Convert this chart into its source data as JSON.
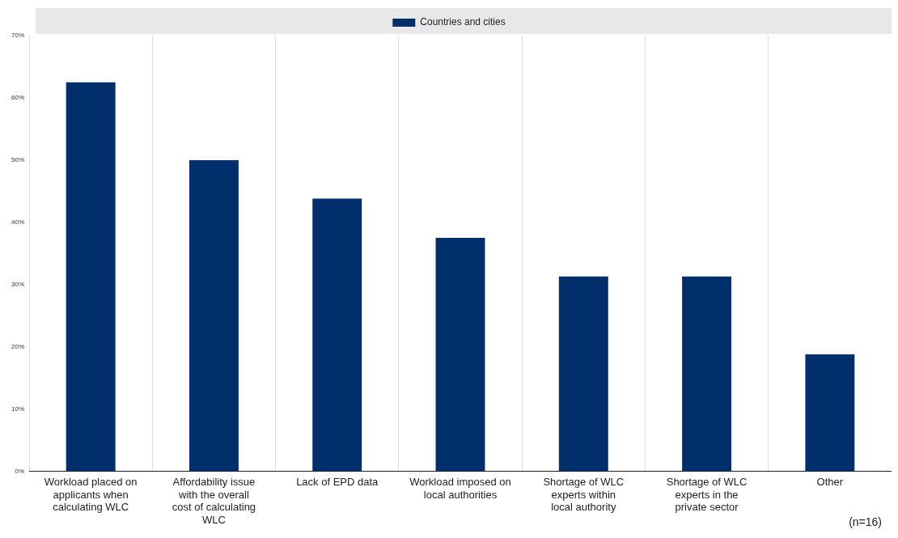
{
  "chart_data": {
    "type": "bar",
    "categories": [
      "Workload placed on applicants when calculating WLC",
      "Affordability issue with the overall cost of calculating WLC",
      "Lack of EPD data",
      "Workload imposed on local authorities",
      "Shortage of WLC experts within local authority",
      "Shortage of WLC experts in the private sector",
      "Other"
    ],
    "series": [
      {
        "name": "Countries and cities",
        "color": "#002f6c",
        "values": [
          62.5,
          50,
          43.8,
          37.5,
          31.3,
          31.3,
          18.8
        ]
      }
    ],
    "ylim": [
      0,
      70
    ],
    "yticks": [
      {
        "value": 0,
        "label": "0%"
      },
      {
        "value": 10,
        "label": "10%"
      },
      {
        "value": 20,
        "label": "20%"
      },
      {
        "value": 30,
        "label": "30%"
      },
      {
        "value": 40,
        "label": "40%"
      },
      {
        "value": 50,
        "label": "50%"
      },
      {
        "value": 60,
        "label": "60%"
      },
      {
        "value": 70,
        "label": "70%"
      }
    ],
    "grid": "x",
    "legend": "top",
    "annotations": [
      "(n=16)"
    ]
  }
}
